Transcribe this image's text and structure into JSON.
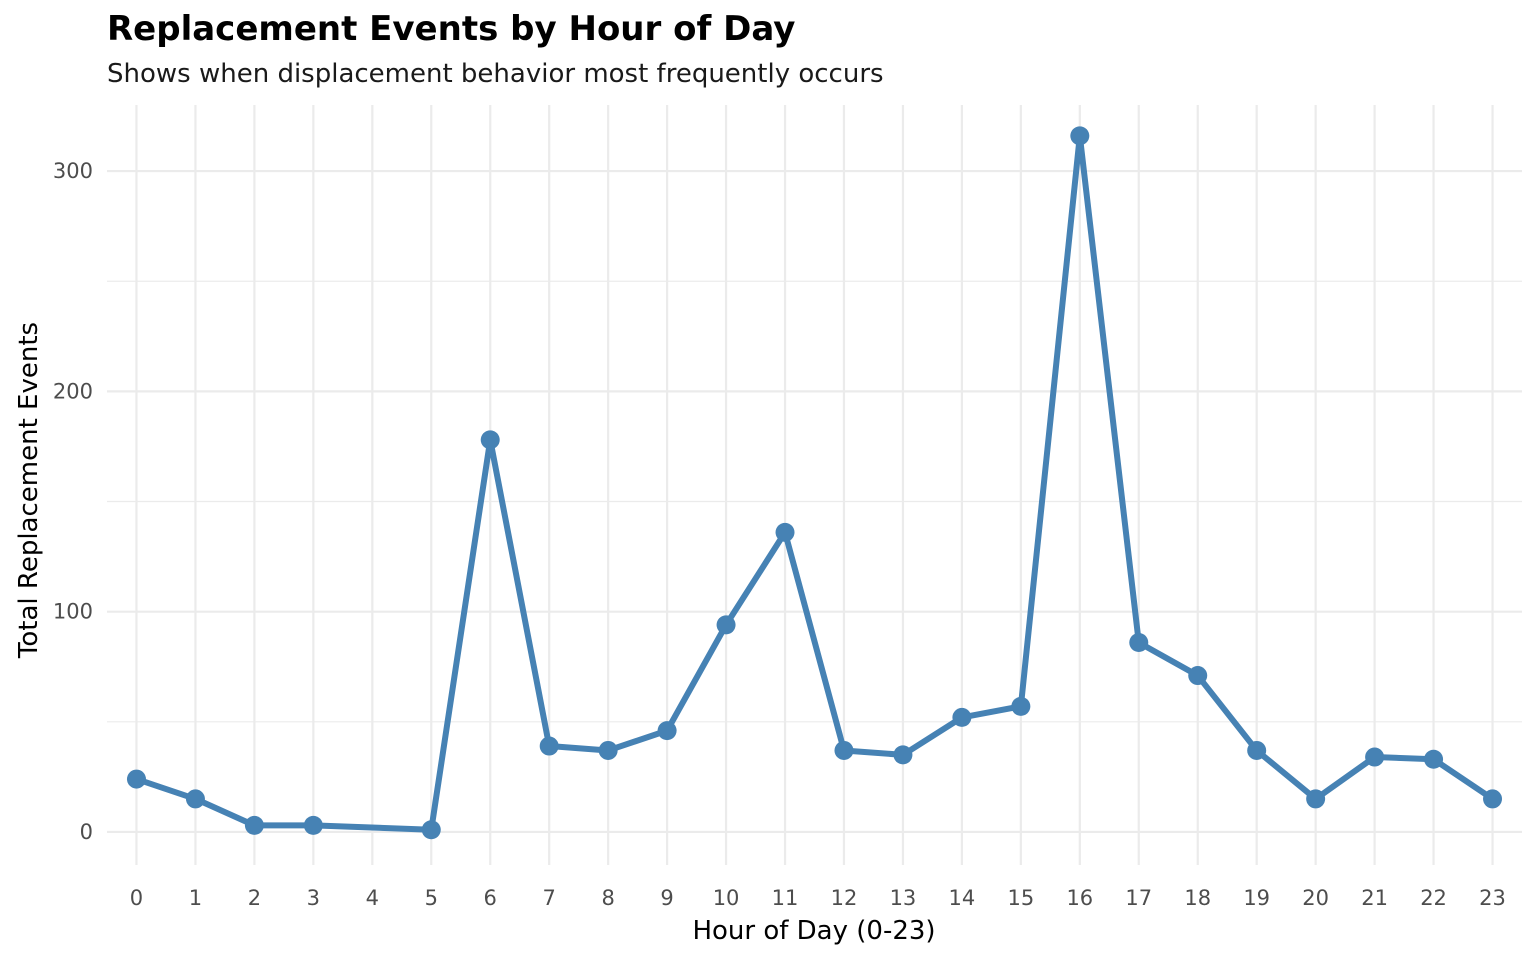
{
  "chart_data": {
    "type": "line",
    "title": "Replacement Events by Hour of Day",
    "subtitle": "Shows when displacement behavior most frequently occurs",
    "xlabel": "Hour of Day (0-23)",
    "ylabel": "Total Replacement Events",
    "x": [
      0,
      1,
      2,
      3,
      5,
      6,
      7,
      8,
      9,
      10,
      11,
      12,
      13,
      14,
      15,
      16,
      17,
      18,
      19,
      20,
      21,
      22,
      23
    ],
    "x_ticks": [
      0,
      1,
      2,
      3,
      4,
      5,
      6,
      7,
      8,
      9,
      10,
      11,
      12,
      13,
      14,
      15,
      16,
      17,
      18,
      19,
      20,
      21,
      22,
      23
    ],
    "y_ticks": [
      0,
      100,
      200,
      300
    ],
    "ylim": [
      -15,
      330
    ],
    "xlim": [
      -0.5,
      23.5
    ],
    "series": [
      {
        "values": [
          24,
          15,
          3,
          3,
          1,
          178,
          39,
          37,
          46,
          94,
          136,
          37,
          35,
          52,
          57,
          316,
          86,
          71,
          37,
          15,
          34,
          33,
          15
        ],
        "color": "#4682b4"
      }
    ],
    "grid": true,
    "grid_color": "#ebebeb"
  }
}
